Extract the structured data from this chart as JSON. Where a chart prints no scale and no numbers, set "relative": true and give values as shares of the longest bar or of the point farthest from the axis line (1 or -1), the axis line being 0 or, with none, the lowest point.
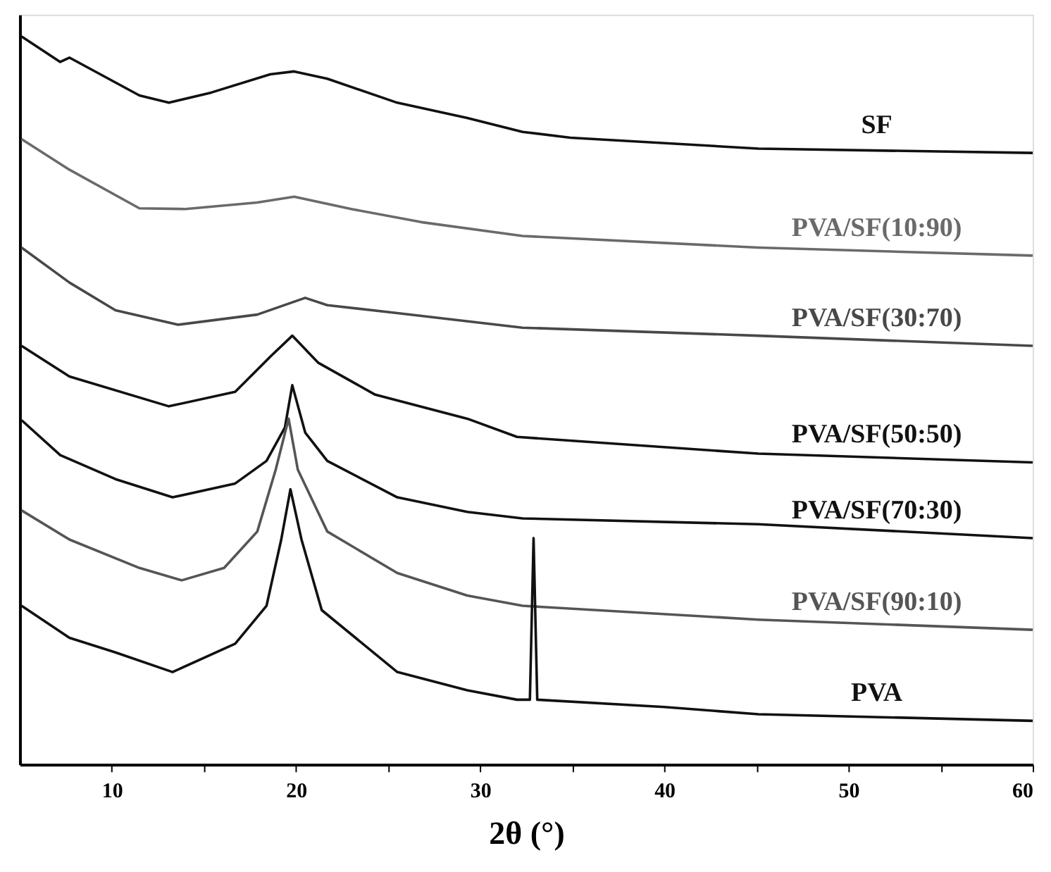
{
  "chart_data": {
    "type": "line",
    "relative": true,
    "xlabel": "2θ (°)",
    "xlim": [
      5,
      60
    ],
    "xticks": [
      10,
      {
        "value": 15,
        "label": null
      },
      20,
      {
        "value": 25,
        "label": null
      },
      30,
      {
        "value": 35,
        "label": null
      },
      40,
      {
        "value": 45,
        "label": null
      },
      50,
      {
        "value": 55,
        "label": null
      },
      60
    ],
    "legend": false,
    "grid": false,
    "marker": "none",
    "line_style": "solid",
    "series": [
      {
        "name": "SF",
        "color": "#111111",
        "x": [
          5.1,
          7.2,
          7.7,
          11.5,
          13.1,
          15.4,
          18.6,
          19.9,
          21.7,
          25.5,
          29.3,
          32.3,
          34.9,
          45.1,
          60
        ],
        "values": [
          1.0,
          0.965,
          0.971,
          0.919,
          0.909,
          0.923,
          0.948,
          0.952,
          0.942,
          0.909,
          0.888,
          0.869,
          0.861,
          0.846,
          0.84
        ]
      },
      {
        "name": "PVA/SF(10:90)",
        "color": "#6a6a6a",
        "x": [
          5.1,
          7.7,
          11.5,
          14.0,
          17.9,
          19.9,
          23.0,
          26.8,
          32.3,
          45.1,
          60
        ],
        "values": [
          0.859,
          0.817,
          0.764,
          0.763,
          0.772,
          0.78,
          0.763,
          0.745,
          0.726,
          0.71,
          0.699
        ]
      },
      {
        "name": "PVA/SF(30:70)",
        "color": "#484848",
        "x": [
          5.1,
          7.7,
          10.2,
          13.6,
          17.9,
          20.5,
          21.7,
          25.5,
          32.3,
          45.1,
          60
        ],
        "values": [
          0.71,
          0.662,
          0.624,
          0.604,
          0.618,
          0.641,
          0.631,
          0.62,
          0.6,
          0.589,
          0.575
        ]
      },
      {
        "name": "PVA/SF(50:50)",
        "color": "#111111",
        "x": [
          5.1,
          7.7,
          13.1,
          16.7,
          18.6,
          19.8,
          21.2,
          24.3,
          29.3,
          32.0,
          45.1,
          60
        ],
        "values": [
          0.575,
          0.533,
          0.492,
          0.512,
          0.56,
          0.589,
          0.552,
          0.508,
          0.475,
          0.45,
          0.427,
          0.415
        ]
      },
      {
        "name": "PVA/SF(70:30)",
        "color": "#111111",
        "x": [
          5.1,
          7.2,
          10.2,
          13.3,
          16.7,
          18.4,
          19.4,
          19.8,
          20.5,
          21.7,
          25.5,
          29.3,
          32.3,
          45.1,
          60
        ],
        "values": [
          0.473,
          0.425,
          0.392,
          0.367,
          0.386,
          0.417,
          0.463,
          0.521,
          0.456,
          0.417,
          0.367,
          0.347,
          0.338,
          0.33,
          0.311
        ]
      },
      {
        "name": "PVA/SF(90:10)",
        "color": "#555555",
        "x": [
          5.1,
          7.7,
          11.5,
          13.8,
          16.1,
          17.9,
          18.9,
          19.6,
          20.1,
          21.7,
          25.5,
          29.3,
          32.3,
          45.1,
          60
        ],
        "values": [
          0.349,
          0.309,
          0.27,
          0.253,
          0.27,
          0.32,
          0.405,
          0.475,
          0.405,
          0.32,
          0.263,
          0.232,
          0.218,
          0.199,
          0.185
        ]
      },
      {
        "name": "PVA",
        "color": "#111111",
        "x": [
          5.1,
          7.7,
          10.2,
          13.3,
          16.7,
          18.4,
          19.2,
          19.7,
          20.3,
          21.4,
          25.5,
          29.3,
          32.0,
          32.7,
          32.9,
          33.1,
          40,
          45.1,
          60
        ],
        "values": [
          0.218,
          0.174,
          0.154,
          0.127,
          0.166,
          0.218,
          0.309,
          0.378,
          0.309,
          0.212,
          0.127,
          0.102,
          0.089,
          0.089,
          0.311,
          0.089,
          0.079,
          0.069,
          0.06
        ]
      }
    ]
  }
}
